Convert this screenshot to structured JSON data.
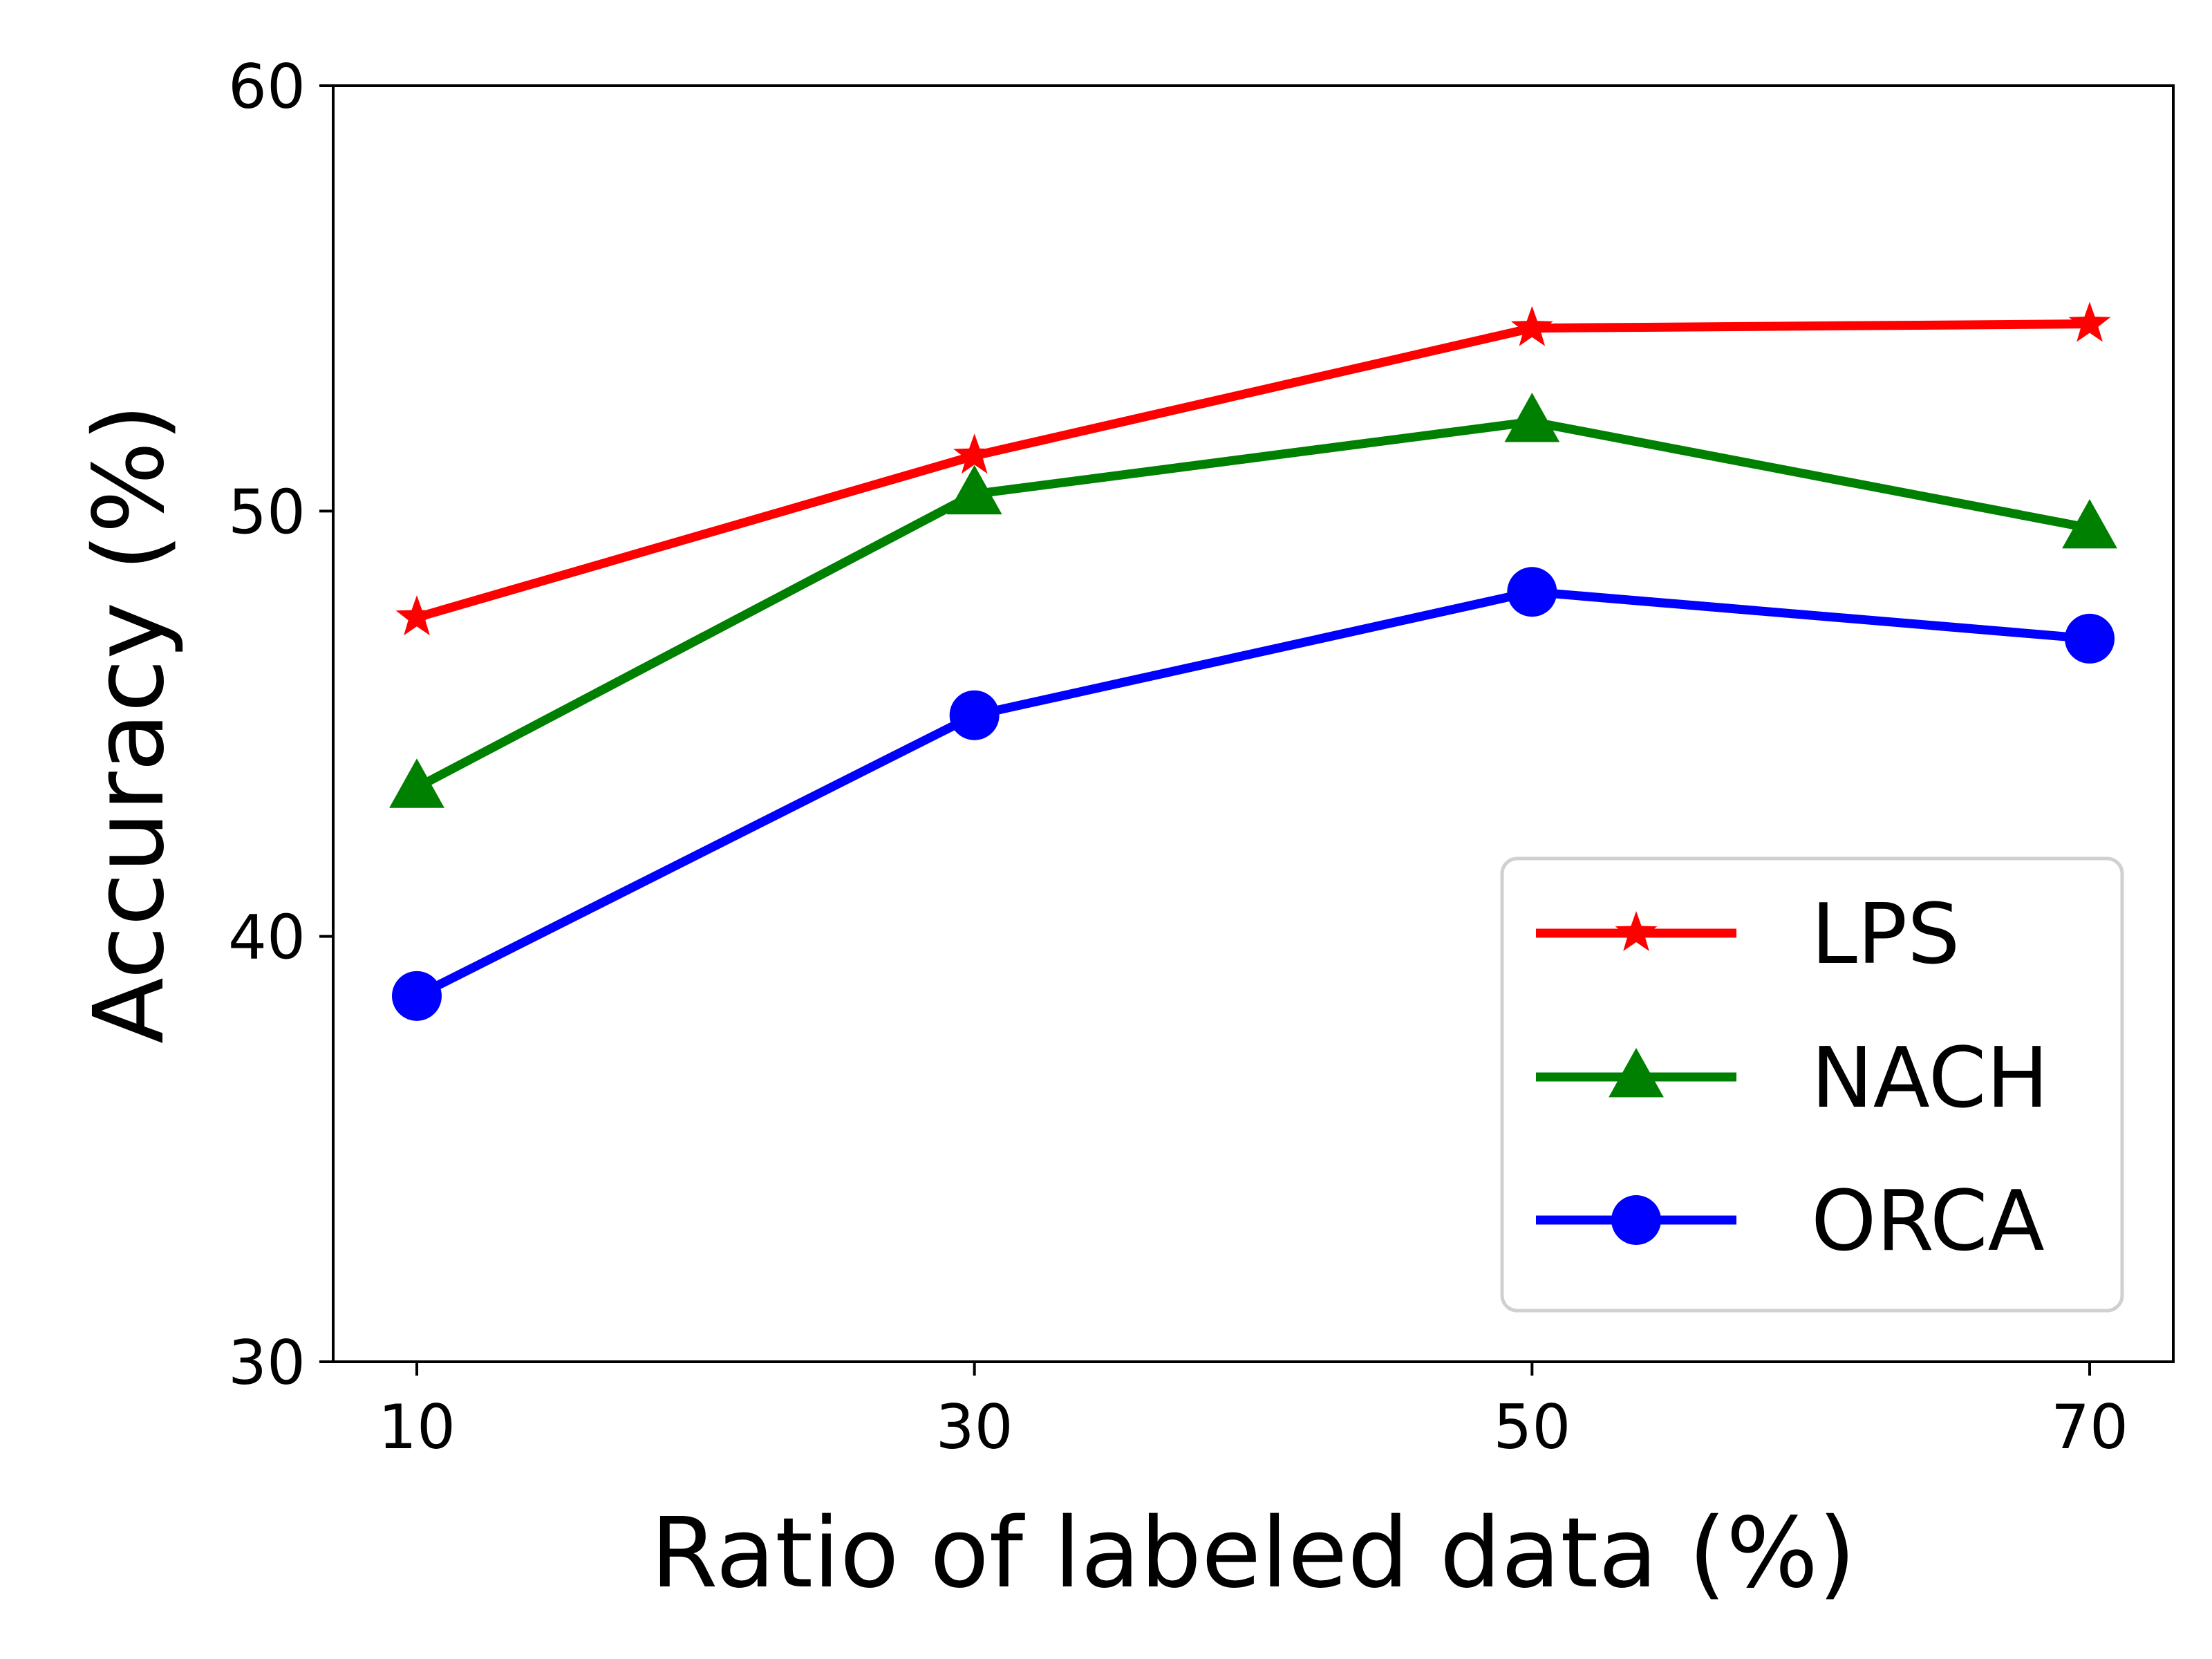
{
  "chart_data": {
    "type": "line",
    "title": "",
    "xlabel": "Ratio of labeled data (%)",
    "ylabel": "Accuracy (%)",
    "x": [
      10,
      30,
      50,
      70
    ],
    "xticks": [
      "10",
      "30",
      "50",
      "70"
    ],
    "yticks": [
      "30",
      "40",
      "50",
      "60"
    ],
    "ylim": [
      30,
      60
    ],
    "xlim": [
      7,
      73
    ],
    "grid": false,
    "legend_position": "bottom-right",
    "series": [
      {
        "name": "LPS",
        "color": "#ff0000",
        "marker": "star",
        "values": [
          47.5,
          51.3,
          54.3,
          54.4
        ]
      },
      {
        "name": "NACH",
        "color": "#008000",
        "marker": "triangle",
        "values": [
          43.5,
          50.4,
          52.1,
          49.6
        ]
      },
      {
        "name": "ORCA",
        "color": "#0000ff",
        "marker": "circle",
        "values": [
          38.6,
          45.2,
          48.1,
          47.0
        ]
      }
    ]
  }
}
